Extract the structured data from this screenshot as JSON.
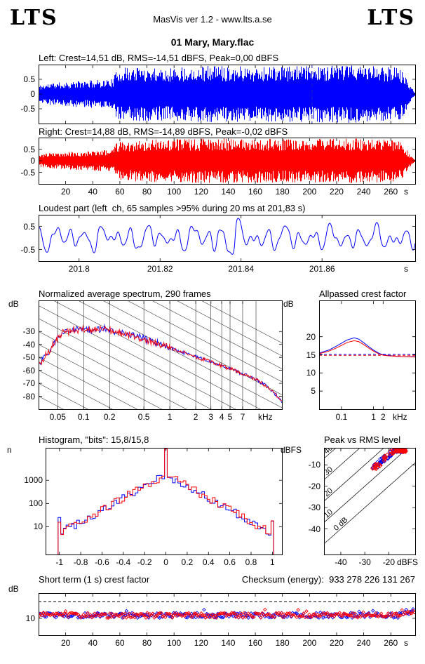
{
  "header": {
    "logo_left": "LTS",
    "logo_right": "LTS",
    "app_info": "MasVis ver 1.2 - www.lts.a.se",
    "title": "01 Mary, Mary.flac"
  },
  "units": {
    "db": "dB",
    "dbfs": "dBFS",
    "n": "n",
    "seconds": "s",
    "khz": "kHz"
  },
  "colors": {
    "left": "#0000ff",
    "right": "#ff0000",
    "axis": "#000000",
    "background": "#ffffff"
  },
  "plots": {
    "left_wave": {
      "label": "Left: Crest=14,51 dB, RMS=-14,51 dBFS, Peak=0,00 dBFS"
    },
    "right_wave": {
      "label": "Right: Crest=14,88 dB, RMS=-14,89 dBFS, Peak=-0,02 dBFS"
    },
    "loudest": {
      "label": "Loudest part (left  ch, 65 samples >95% during 20 ms at 201,83 s)"
    },
    "spectrum": {
      "label": "Normalized average spectrum, 290 frames"
    },
    "allpassed": {
      "label": "Allpassed crest factor"
    },
    "histogram": {
      "label": "Histogram, \"bits\": 15,8/15,8"
    },
    "peak_rms": {
      "label": "Peak vs RMS level"
    },
    "short_crest": {
      "label": "Short term (1 s) crest factor"
    },
    "checksum": {
      "label": "Checksum (energy):",
      "value": "933 278 226 131 267"
    }
  },
  "chart_data": [
    {
      "id": "left_wave",
      "type": "area",
      "channel": "left",
      "color": "#0000ff",
      "title": "Left: Crest=14,51 dB, RMS=-14,51 dBFS, Peak=0,00 dBFS",
      "crest_db": 14.51,
      "rms_dbfs": -14.51,
      "peak_dbfs": 0.0,
      "xlim": [
        0,
        278
      ],
      "ylim": [
        -1,
        1
      ],
      "yticks": [
        {
          "v": 0.5,
          "label": "0.5"
        },
        {
          "v": 0,
          "label": "0"
        },
        {
          "v": -0.5,
          "label": "-0.5"
        }
      ],
      "envelope": [
        [
          0,
          0.3
        ],
        [
          8,
          0.38
        ],
        [
          20,
          0.42
        ],
        [
          40,
          0.48
        ],
        [
          55,
          0.52
        ],
        [
          58,
          0.88
        ],
        [
          70,
          0.95
        ],
        [
          100,
          0.93
        ],
        [
          130,
          1.0
        ],
        [
          160,
          0.95
        ],
        [
          200,
          0.97
        ],
        [
          230,
          1.0
        ],
        [
          252,
          0.95
        ],
        [
          264,
          0.97
        ],
        [
          268,
          0.85
        ],
        [
          271,
          0.6
        ],
        [
          274,
          0.3
        ],
        [
          277,
          0.12
        ],
        [
          278,
          0.06
        ]
      ],
      "cursor_s": 201.83
    },
    {
      "id": "right_wave",
      "type": "area",
      "channel": "right",
      "color": "#ff0000",
      "title": "Right: Crest=14,88 dB, RMS=-14,89 dBFS, Peak=-0,02 dBFS",
      "crest_db": 14.88,
      "rms_dbfs": -14.89,
      "peak_dbfs": -0.02,
      "xlim": [
        0,
        278
      ],
      "ylim": [
        -1,
        1
      ],
      "yticks": [
        {
          "v": 0.5,
          "label": "0.5"
        },
        {
          "v": 0,
          "label": "0"
        },
        {
          "v": -0.5,
          "label": "-0.5"
        }
      ],
      "xticks": [
        20,
        40,
        60,
        80,
        100,
        120,
        140,
        160,
        180,
        200,
        220,
        240,
        260
      ],
      "x_unit": "s",
      "envelope": [
        [
          0,
          0.26
        ],
        [
          8,
          0.34
        ],
        [
          20,
          0.38
        ],
        [
          40,
          0.45
        ],
        [
          55,
          0.5
        ],
        [
          58,
          0.85
        ],
        [
          70,
          0.92
        ],
        [
          100,
          0.95
        ],
        [
          130,
          1.0
        ],
        [
          160,
          0.97
        ],
        [
          200,
          0.95
        ],
        [
          230,
          1.0
        ],
        [
          252,
          0.96
        ],
        [
          264,
          0.9
        ],
        [
          268,
          0.8
        ],
        [
          271,
          0.55
        ],
        [
          274,
          0.28
        ],
        [
          277,
          0.1
        ],
        [
          278,
          0.05
        ]
      ]
    },
    {
      "id": "loudest",
      "type": "line",
      "channel": "left",
      "color": "#0000ff",
      "title": "Loudest part (left  ch, 65 samples >95% during 20 ms at 201,83 s)",
      "xlim": [
        201.79,
        201.883
      ],
      "ylim": [
        -1,
        1
      ],
      "xticks": [
        {
          "v": 201.8,
          "label": "201.8"
        },
        {
          "v": 201.82,
          "label": "201.82"
        },
        {
          "v": 201.84,
          "label": "201.84"
        },
        {
          "v": 201.86,
          "label": "201.86"
        }
      ],
      "yticks": [
        {
          "v": 0.5,
          "label": "0.5"
        },
        {
          "v": -0.5,
          "label": "-0.5"
        }
      ],
      "x_unit": "s",
      "burst_time": 201.837,
      "base_amplitude": 0.42,
      "burst_gain": 1.1
    },
    {
      "id": "spectrum",
      "type": "line",
      "xscale": "log",
      "frames": 290,
      "xlim": [
        0.03,
        20
      ],
      "ylim": [
        -90,
        -6
      ],
      "x_unit": "kHz",
      "y_unit": "dB",
      "yticks": [
        {
          "v": -30,
          "label": "-30"
        },
        {
          "v": -40,
          "label": "-40"
        },
        {
          "v": -50,
          "label": "-50"
        },
        {
          "v": -60,
          "label": "-60"
        },
        {
          "v": -70,
          "label": "-70"
        },
        {
          "v": -80,
          "label": "-80"
        }
      ],
      "xticks": [
        {
          "v": 0.05,
          "label": "0.05"
        },
        {
          "v": 0.1,
          "label": "0.1"
        },
        {
          "v": 0.2,
          "label": "0.2"
        },
        {
          "v": 0.5,
          "label": "0.5"
        },
        {
          "v": 1,
          "label": "1"
        },
        {
          "v": 2,
          "label": "2"
        },
        {
          "v": 3,
          "label": "3"
        },
        {
          "v": 4,
          "label": "4"
        },
        {
          "v": 5,
          "label": "5"
        },
        {
          "v": 7,
          "label": "7"
        }
      ],
      "grid_verticals": [
        0.05,
        0.1,
        0.2,
        0.5,
        1,
        2,
        3,
        4,
        5,
        7,
        10
      ],
      "diag_slope_db_per_decade": -35,
      "base_points": [
        [
          0.03,
          -56
        ],
        [
          0.04,
          -45
        ],
        [
          0.05,
          -34
        ],
        [
          0.06,
          -30
        ],
        [
          0.08,
          -29
        ],
        [
          0.1,
          -28
        ],
        [
          0.13,
          -29.5
        ],
        [
          0.16,
          -28
        ],
        [
          0.2,
          -29
        ],
        [
          0.25,
          -30.5
        ],
        [
          0.3,
          -31.5
        ],
        [
          0.4,
          -33.5
        ],
        [
          0.5,
          -35.5
        ],
        [
          0.7,
          -39
        ],
        [
          1,
          -42.5
        ],
        [
          1.4,
          -46
        ],
        [
          2,
          -49.5
        ],
        [
          3,
          -53.5
        ],
        [
          4,
          -56.5
        ],
        [
          5,
          -58.5
        ],
        [
          7,
          -62.5
        ],
        [
          10,
          -67
        ],
        [
          13,
          -72
        ],
        [
          16,
          -77
        ],
        [
          20,
          -84
        ]
      ],
      "series": [
        {
          "name": "left",
          "color": "#0000ff"
        },
        {
          "name": "right",
          "color": "#ff0000"
        }
      ]
    },
    {
      "id": "allpassed",
      "type": "line",
      "xscale": "log",
      "xlim": [
        0.02,
        20
      ],
      "ylim": [
        0,
        30
      ],
      "x_unit": "kHz",
      "y_unit": "dB",
      "yticks": [
        {
          "v": 20,
          "label": "20"
        },
        {
          "v": 15,
          "label": "15"
        },
        {
          "v": 10,
          "label": "10"
        },
        {
          "v": 5,
          "label": "5"
        }
      ],
      "xticks": [
        {
          "v": 0.1,
          "label": "0.1"
        },
        {
          "v": 1,
          "label": "1"
        },
        {
          "v": 2,
          "label": "2"
        }
      ],
      "series": [
        {
          "name": "left",
          "color": "#0000ff",
          "points": [
            [
              0.02,
              15.5
            ],
            [
              0.04,
              16.3
            ],
            [
              0.07,
              17.4
            ],
            [
              0.1,
              18.2
            ],
            [
              0.15,
              19.1
            ],
            [
              0.25,
              19.7
            ],
            [
              0.35,
              19.3
            ],
            [
              0.5,
              18.3
            ],
            [
              0.7,
              17.3
            ],
            [
              1,
              16.3
            ],
            [
              1.5,
              15.4
            ],
            [
              2,
              15.0
            ],
            [
              3,
              14.8
            ],
            [
              5,
              14.6
            ],
            [
              10,
              14.5
            ],
            [
              20,
              14.5
            ]
          ]
        },
        {
          "name": "right",
          "color": "#ff0000",
          "points": [
            [
              0.02,
              15.3
            ],
            [
              0.04,
              16.0
            ],
            [
              0.07,
              16.9
            ],
            [
              0.1,
              17.6
            ],
            [
              0.15,
              18.4
            ],
            [
              0.25,
              18.9
            ],
            [
              0.35,
              18.6
            ],
            [
              0.5,
              17.8
            ],
            [
              0.7,
              16.9
            ],
            [
              1,
              16.0
            ],
            [
              1.5,
              15.2
            ],
            [
              2,
              14.9
            ],
            [
              3,
              14.7
            ],
            [
              5,
              14.6
            ],
            [
              10,
              14.5
            ],
            [
              20,
              14.4
            ]
          ]
        }
      ],
      "ref_lines": [
        {
          "name": "left-rms-ref",
          "color": "#0000ff",
          "v": 15.15,
          "style": "dashed"
        },
        {
          "name": "right-rms-ref",
          "color": "#ff0000",
          "v": 14.85,
          "style": "dashed"
        }
      ]
    },
    {
      "id": "histogram",
      "type": "histogram",
      "bits_label": "15,8/15,8",
      "xlim": [
        -1.13,
        1.09
      ],
      "yscale": "log",
      "ylim_log": [
        -0.2,
        4.4
      ],
      "y_unit": "n",
      "yticks": [
        {
          "v": 1000,
          "label": "1000"
        },
        {
          "v": 100,
          "label": "100"
        },
        {
          "v": 10,
          "label": "10"
        }
      ],
      "xticks": [
        {
          "v": -1,
          "label": "-1"
        },
        {
          "v": -0.8,
          "label": "-0.8"
        },
        {
          "v": -0.6,
          "label": "-0.6"
        },
        {
          "v": -0.4,
          "label": "-0.4"
        },
        {
          "v": -0.2,
          "label": "-0.2"
        },
        {
          "v": 0,
          "label": "0"
        },
        {
          "v": 0.2,
          "label": "0.2"
        },
        {
          "v": 0.4,
          "label": "0.4"
        },
        {
          "v": 0.6,
          "label": "0.6"
        },
        {
          "v": 0.8,
          "label": "0.8"
        },
        {
          "v": 1,
          "label": "1"
        }
      ],
      "bin_width": 0.025,
      "peak_log_n": 3.25,
      "slope_log_n_per_unit": -2.55,
      "center_spike_log_n": 4.35,
      "edge_log_n": 1.4,
      "series": [
        {
          "name": "left",
          "color": "#0000ff"
        },
        {
          "name": "right",
          "color": "#ff0000"
        }
      ]
    },
    {
      "id": "peak_rms",
      "type": "scatter",
      "xlim": [
        -47,
        -9
      ],
      "ylim": [
        -52,
        -2
      ],
      "x_unit": "dBFS",
      "y_unit": "dBFS",
      "xticks": [
        {
          "v": -40,
          "label": "-40"
        },
        {
          "v": -30,
          "label": "-30"
        },
        {
          "v": -20,
          "label": "-20"
        }
      ],
      "yticks": [
        {
          "v": -10,
          "label": "-10"
        },
        {
          "v": -20,
          "label": "-20"
        },
        {
          "v": -30,
          "label": "-30"
        },
        {
          "v": -40,
          "label": "-40"
        }
      ],
      "crest_lines": [
        {
          "c": 0,
          "label": "0 dB"
        },
        {
          "c": 10,
          "label": "10"
        },
        {
          "c": 20,
          "label": "20"
        },
        {
          "c": 30,
          "label": "30"
        },
        {
          "c": 40,
          "label": "40"
        }
      ],
      "points_per_channel": 75,
      "rms_range": [
        -27,
        -13
      ],
      "crest_range": [
        13.2,
        16.4
      ],
      "series": [
        {
          "name": "left",
          "color": "#0000ff"
        },
        {
          "name": "right",
          "color": "#ff0000"
        }
      ]
    },
    {
      "id": "short_crest",
      "type": "scatter",
      "xlim": [
        0,
        278
      ],
      "ylim": [
        0,
        25
      ],
      "x_unit": "s",
      "y_unit": "dB",
      "yticks": [
        {
          "v": 10,
          "label": "10"
        }
      ],
      "xticks": [
        20,
        40,
        60,
        80,
        100,
        120,
        140,
        160,
        180,
        200,
        220,
        240,
        260
      ],
      "dashed_line_db": 20,
      "mean_crest_db": 11.8,
      "spread_db": 1.5,
      "points_per_channel": 272,
      "series": [
        {
          "name": "left",
          "color": "#0000ff"
        },
        {
          "name": "right",
          "color": "#ff0000"
        }
      ]
    }
  ]
}
